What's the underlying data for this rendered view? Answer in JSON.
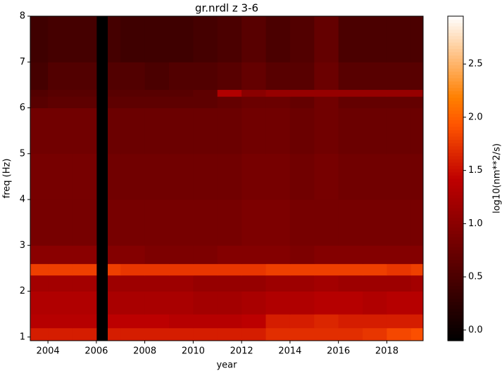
{
  "chart_data": {
    "type": "heatmap",
    "title": "gr.nrdl z 3-6",
    "x_label": "year",
    "y_label": "freq (Hz)",
    "colorbar_label": "log10(nm**2/s)",
    "colormap": "gist_heat",
    "x_edges": [
      2003.27,
      2004,
      2005,
      2006,
      2006.47,
      2007,
      2008,
      2009,
      2010,
      2011,
      2012,
      2013,
      2014,
      2015,
      2016,
      2017,
      2018,
      2019,
      2019.5
    ],
    "y_edges": [
      0.92,
      1.2,
      1.5,
      2.0,
      2.35,
      2.6,
      3,
      4,
      5,
      6,
      6.25,
      6.4,
      7,
      8
    ],
    "z": [
      [
        1.6,
        1.6,
        1.6,
        null,
        1.6,
        1.6,
        1.6,
        1.6,
        1.6,
        1.6,
        1.6,
        1.7,
        1.7,
        1.7,
        1.7,
        1.75,
        1.85,
        1.9
      ],
      [
        1.35,
        1.35,
        1.35,
        null,
        1.4,
        1.4,
        1.4,
        1.35,
        1.35,
        1.35,
        1.4,
        1.6,
        1.6,
        1.65,
        1.6,
        1.6,
        1.6,
        1.6
      ],
      [
        1.3,
        1.3,
        1.3,
        null,
        1.25,
        1.25,
        1.25,
        1.25,
        1.2,
        1.2,
        1.25,
        1.3,
        1.3,
        1.35,
        1.35,
        1.3,
        1.35,
        1.35
      ],
      [
        1.2,
        1.2,
        1.2,
        null,
        1.15,
        1.15,
        1.15,
        1.15,
        1.1,
        1.1,
        1.1,
        1.15,
        1.15,
        1.2,
        1.15,
        1.15,
        1.15,
        1.2
      ],
      [
        1.8,
        1.8,
        1.8,
        null,
        1.8,
        1.75,
        1.75,
        1.75,
        1.75,
        1.75,
        1.75,
        1.8,
        1.8,
        1.8,
        1.8,
        1.8,
        1.75,
        1.8
      ],
      [
        1.0,
        1.0,
        1.0,
        null,
        0.95,
        0.95,
        0.9,
        0.9,
        0.9,
        0.95,
        0.95,
        0.95,
        0.9,
        0.95,
        0.95,
        0.95,
        0.95,
        0.95
      ],
      [
        0.85,
        0.85,
        0.85,
        null,
        0.85,
        0.85,
        0.85,
        0.85,
        0.85,
        0.85,
        0.9,
        0.9,
        0.85,
        0.85,
        0.85,
        0.85,
        0.85,
        0.85
      ],
      [
        0.85,
        0.85,
        0.85,
        null,
        0.8,
        0.8,
        0.8,
        0.8,
        0.8,
        0.8,
        0.85,
        0.85,
        0.8,
        0.85,
        0.8,
        0.8,
        0.8,
        0.8
      ],
      [
        0.8,
        0.8,
        0.8,
        null,
        0.75,
        0.75,
        0.75,
        0.75,
        0.75,
        0.75,
        0.8,
        0.8,
        0.75,
        0.8,
        0.75,
        0.75,
        0.75,
        0.75
      ],
      [
        0.6,
        0.65,
        0.65,
        null,
        0.65,
        0.65,
        0.65,
        0.65,
        0.65,
        0.7,
        0.75,
        0.75,
        0.7,
        0.8,
        0.7,
        0.7,
        0.7,
        0.7
      ],
      [
        0.55,
        0.6,
        0.6,
        null,
        0.6,
        0.6,
        0.6,
        0.6,
        0.65,
        1.3,
        1.0,
        1.1,
        1.1,
        1.1,
        1.1,
        1.1,
        1.1,
        1.1
      ],
      [
        0.45,
        0.55,
        0.55,
        null,
        0.55,
        0.55,
        0.5,
        0.55,
        0.55,
        0.6,
        0.7,
        0.6,
        0.6,
        0.75,
        0.6,
        0.6,
        0.6,
        0.6
      ],
      [
        0.4,
        0.45,
        0.45,
        null,
        0.45,
        0.4,
        0.4,
        0.4,
        0.45,
        0.5,
        0.6,
        0.5,
        0.55,
        0.7,
        0.5,
        0.5,
        0.5,
        0.5
      ]
    ],
    "xlim": [
      2003.27,
      2019.5
    ],
    "ylim": [
      0.92,
      8
    ],
    "xticks": [
      2004,
      2006,
      2008,
      2010,
      2012,
      2014,
      2016,
      2018
    ],
    "yticks": [
      1,
      2,
      3,
      4,
      5,
      6,
      7,
      8
    ],
    "clim": [
      -0.1,
      2.95
    ],
    "cticks": [
      {
        "value": 0,
        "label": "0.0"
      },
      {
        "value": 0.5,
        "label": "0.5"
      },
      {
        "value": 1,
        "label": "1.0"
      },
      {
        "value": 1.5,
        "label": "1.5"
      },
      {
        "value": 2,
        "label": "2.0"
      },
      {
        "value": 2.5,
        "label": "2.5"
      }
    ]
  }
}
